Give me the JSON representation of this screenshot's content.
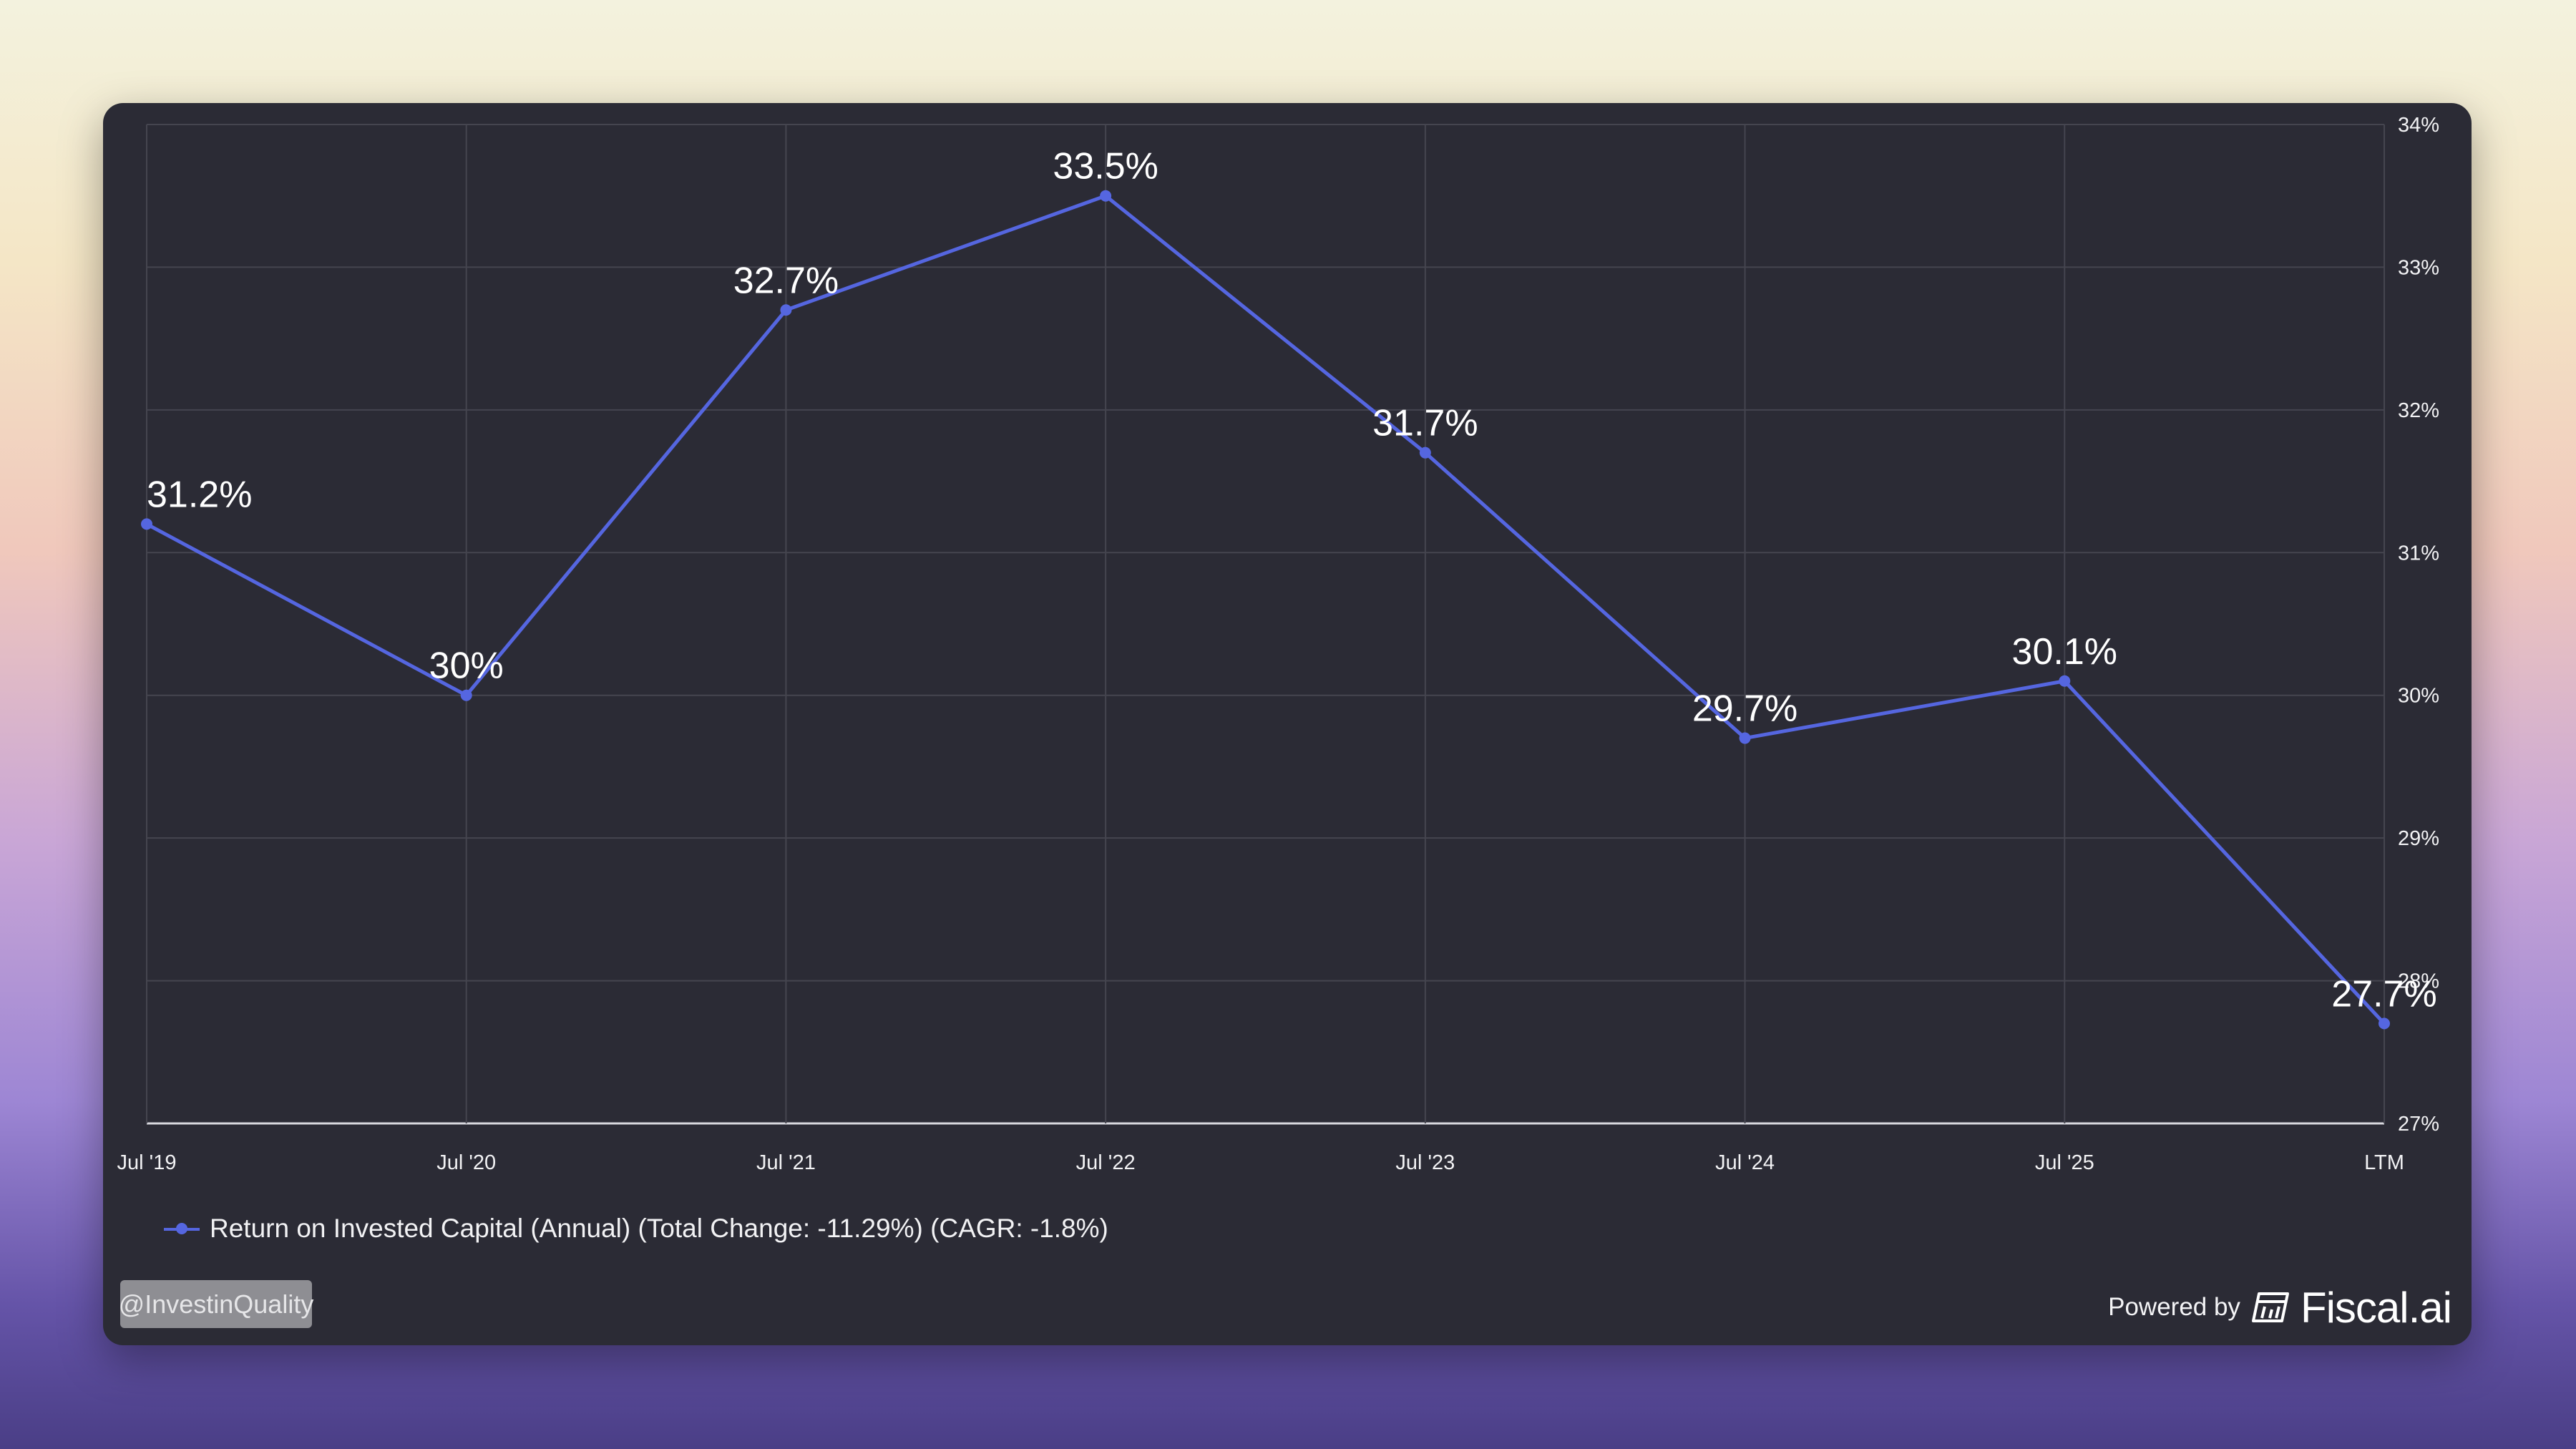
{
  "chart_data": {
    "type": "line",
    "categories": [
      "Jul '19",
      "Jul '20",
      "Jul '21",
      "Jul '22",
      "Jul '23",
      "Jul '24",
      "Jul '25",
      "LTM"
    ],
    "series": [
      {
        "name": "Return on Invested Capital (Annual) (Total Change: -11.29%) (CAGR: -1.8%)",
        "values": [
          31.2,
          30.0,
          32.7,
          33.5,
          31.7,
          29.7,
          30.1,
          27.7
        ],
        "data_labels": [
          "31.2%",
          "30%",
          "32.7%",
          "33.5%",
          "31.7%",
          "29.7%",
          "30.1%",
          "27.7%"
        ],
        "color": "#5566e0"
      }
    ],
    "y_ticks": [
      "27%",
      "28%",
      "29%",
      "30%",
      "31%",
      "32%",
      "33%",
      "34%"
    ],
    "ylim": [
      27,
      34
    ],
    "y_axis_position": "right",
    "grid": true,
    "legend_position": "bottom-left",
    "title": "",
    "xlabel": "",
    "ylabel": ""
  },
  "colors": {
    "card_background": "#2b2b35",
    "line": "#5566e0",
    "grid": "#45454f",
    "text": "#ffffff"
  },
  "watermark": {
    "handle": "@InvestinQuality"
  },
  "branding": {
    "powered_by": "Powered by",
    "brand": "Fiscal.ai",
    "icon": "fiscal-ai-logo-icon"
  }
}
